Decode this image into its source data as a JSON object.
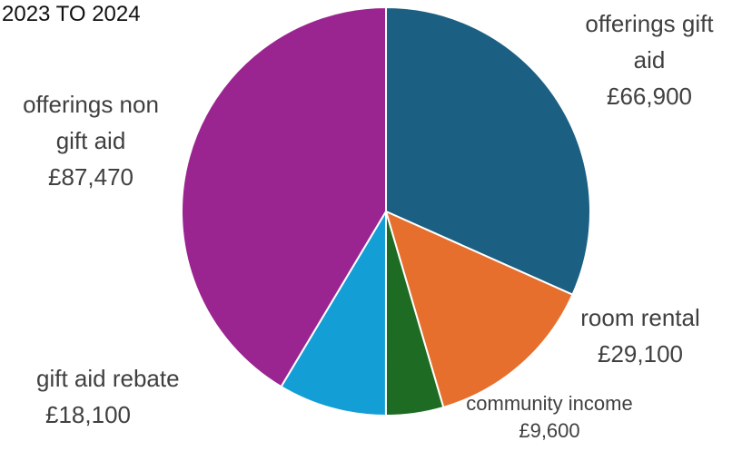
{
  "chart_data": {
    "type": "pie",
    "title": "2023 TO 2024",
    "slices": [
      {
        "name": "offerings gift aid",
        "value": 66900,
        "value_label": "£66,900",
        "color": "#1b5f82"
      },
      {
        "name": "room rental",
        "value": 29100,
        "value_label": "£29,100",
        "color": "#e66f2e"
      },
      {
        "name": "community income",
        "value": 9600,
        "value_label": "£9,600",
        "color": "#1e6b23"
      },
      {
        "name": "gift aid rebate",
        "value": 18100,
        "value_label": "£18,100",
        "color": "#149ed6"
      },
      {
        "name": "offerings non gift aid",
        "value": 87470,
        "value_label": "£87,470",
        "color": "#9b2590"
      }
    ],
    "legend": "none",
    "data_labels": "outside"
  }
}
